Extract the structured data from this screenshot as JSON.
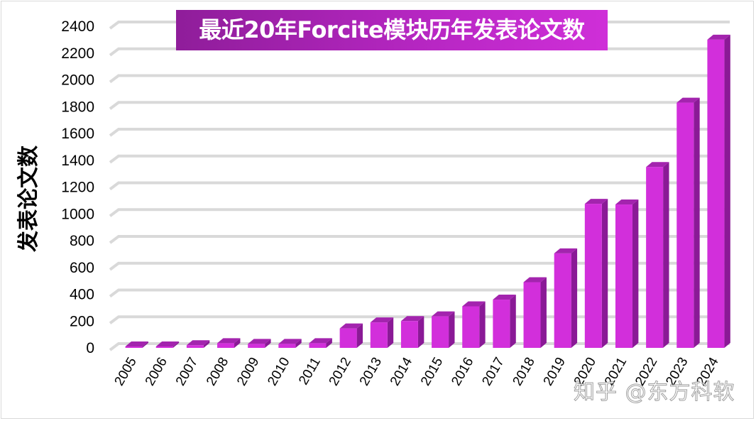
{
  "chart_data": {
    "type": "bar",
    "style": "3d-column",
    "title": "最近20年Forcite模块历年发表论文数",
    "xlabel": "",
    "ylabel": "发表论文数",
    "categories": [
      "2005",
      "2006",
      "2007",
      "2008",
      "2009",
      "2010",
      "2011",
      "2012",
      "2013",
      "2014",
      "2015",
      "2016",
      "2017",
      "2018",
      "2019",
      "2020",
      "2021",
      "2022",
      "2023",
      "2024"
    ],
    "values": [
      5,
      5,
      20,
      35,
      30,
      30,
      35,
      145,
      190,
      200,
      235,
      310,
      360,
      490,
      705,
      1075,
      1070,
      1350,
      1830,
      2300
    ],
    "ylim": [
      0,
      2400
    ],
    "yticks": [
      0,
      200,
      400,
      600,
      800,
      1000,
      1200,
      1400,
      1600,
      1800,
      2000,
      2200,
      2400
    ],
    "grid": true,
    "legend": null,
    "colors": {
      "bar_front": "#d22fdb",
      "bar_side": "#8a1a96",
      "bar_top": "#a324ae",
      "grid": "#d9d9d9",
      "title_bg_start": "#8f1d9a",
      "title_bg_end": "#cf2fd8"
    }
  },
  "watermark": "知乎 @东方科软"
}
